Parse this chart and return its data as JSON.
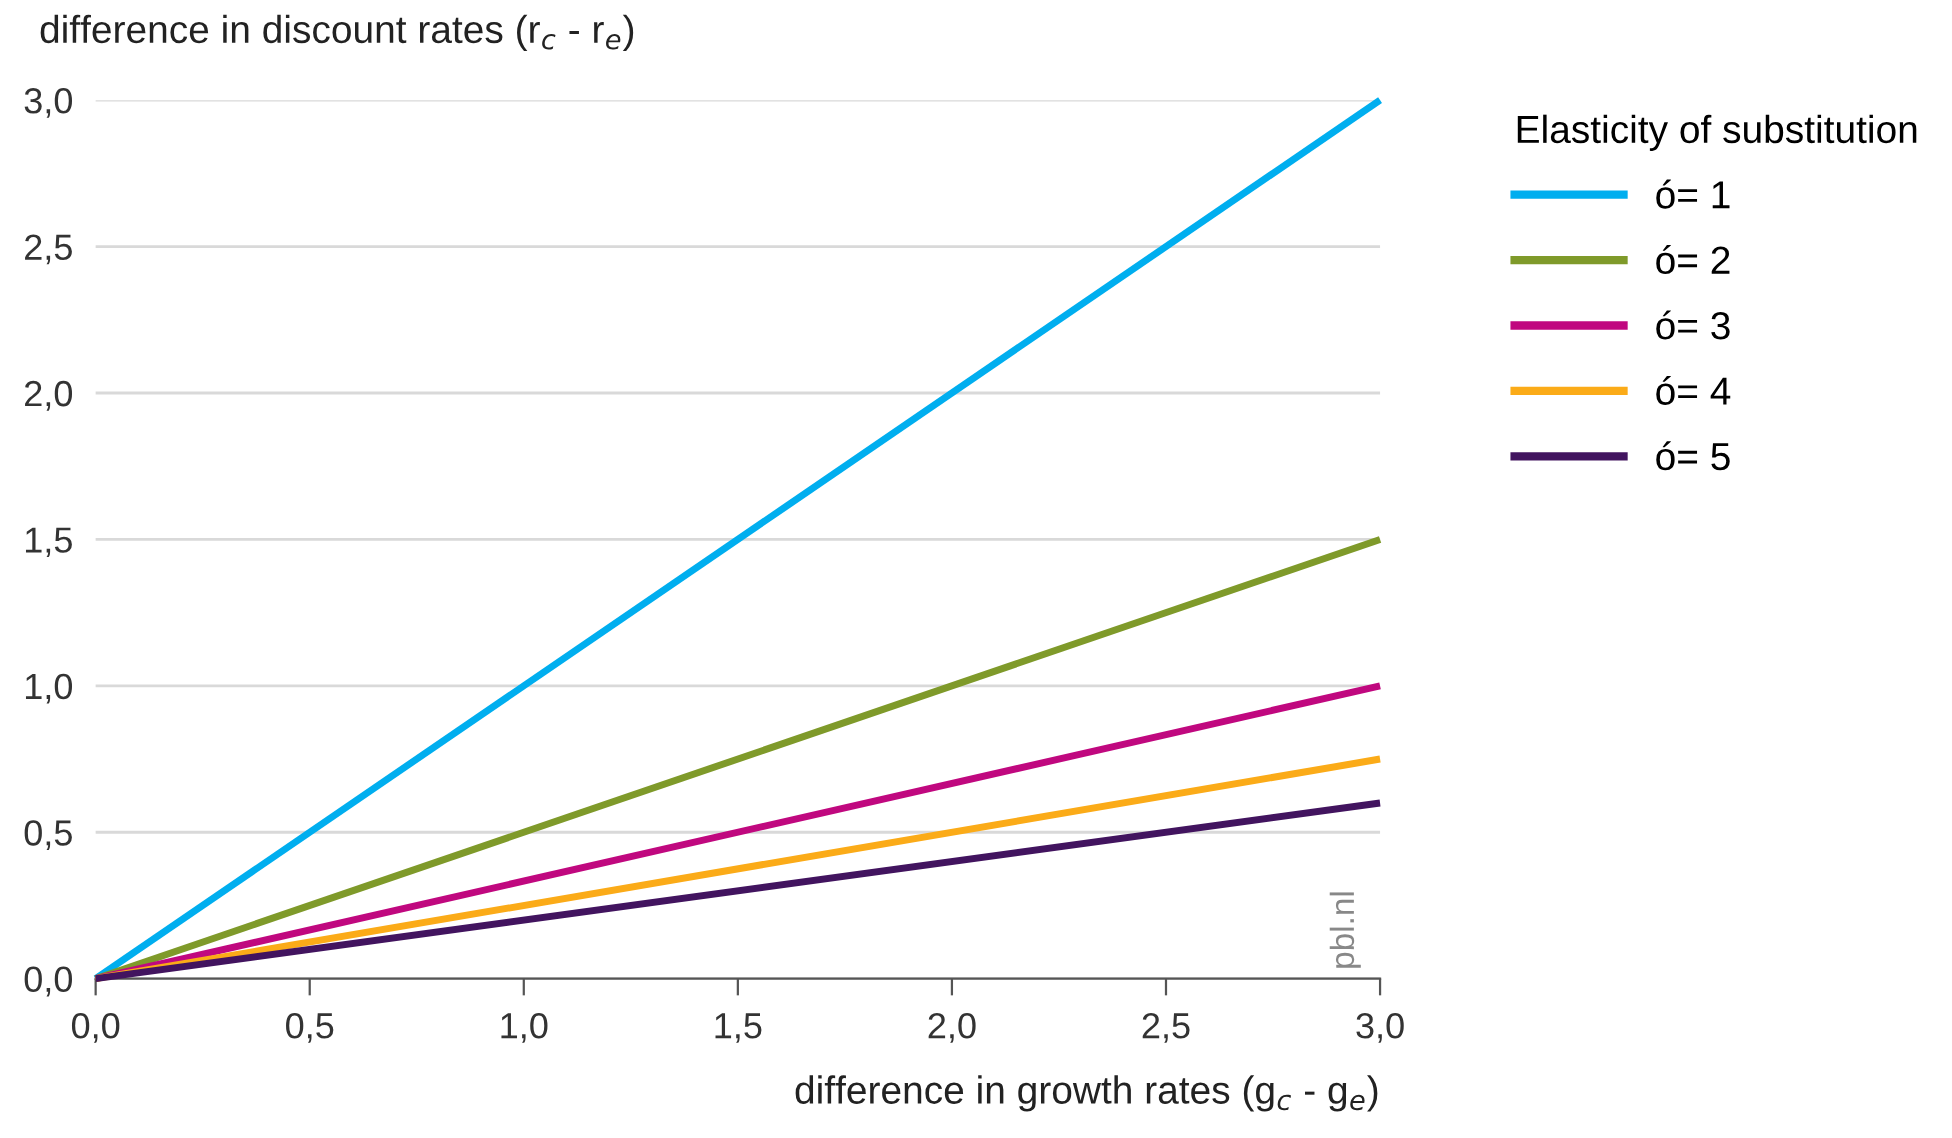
{
  "chart_data": {
    "type": "line",
    "ylabel": "difference in discount rates (r$_{c}$ - r$_{e}$)",
    "xlabel": "difference in growth rates (g$_{c}$ - g$_{e}$)",
    "legend_title": "Elasticity of substitution",
    "x": [
      0,
      3
    ],
    "series": [
      {
        "name": "ó= 1",
        "color": "#00aeef",
        "values": [
          0,
          3.0
        ]
      },
      {
        "name": "ó= 2",
        "color": "#7f9a2a",
        "values": [
          0,
          1.5
        ]
      },
      {
        "name": "ó= 3",
        "color": "#c0087f",
        "values": [
          0,
          1.0
        ]
      },
      {
        "name": "ó= 4",
        "color": "#fbab18",
        "values": [
          0,
          0.75
        ]
      },
      {
        "name": "ó= 5",
        "color": "#42145f",
        "values": [
          0,
          0.6
        ]
      }
    ],
    "xlim": [
      0,
      3
    ],
    "ylim": [
      0,
      3
    ],
    "xticks": [
      {
        "value": 0,
        "label": "0,0"
      },
      {
        "value": 0.5,
        "label": "0,5"
      },
      {
        "value": 1,
        "label": "1,0"
      },
      {
        "value": 1.5,
        "label": "1,5"
      },
      {
        "value": 2,
        "label": "2,0"
      },
      {
        "value": 2.5,
        "label": "2,5"
      },
      {
        "value": 3,
        "label": "3,0"
      }
    ],
    "yticks": [
      {
        "value": 0,
        "label": "0,0"
      },
      {
        "value": 0.5,
        "label": "0,5"
      },
      {
        "value": 1,
        "label": "1,0"
      },
      {
        "value": 1.5,
        "label": "1,5"
      },
      {
        "value": 2,
        "label": "2,0"
      },
      {
        "value": 2.5,
        "label": "2,5"
      },
      {
        "value": 3,
        "label": "3,0"
      }
    ],
    "grid": "y",
    "legend": "right",
    "marker": "none",
    "line_style": "solid",
    "annotations": [
      "pbl.nl"
    ]
  }
}
